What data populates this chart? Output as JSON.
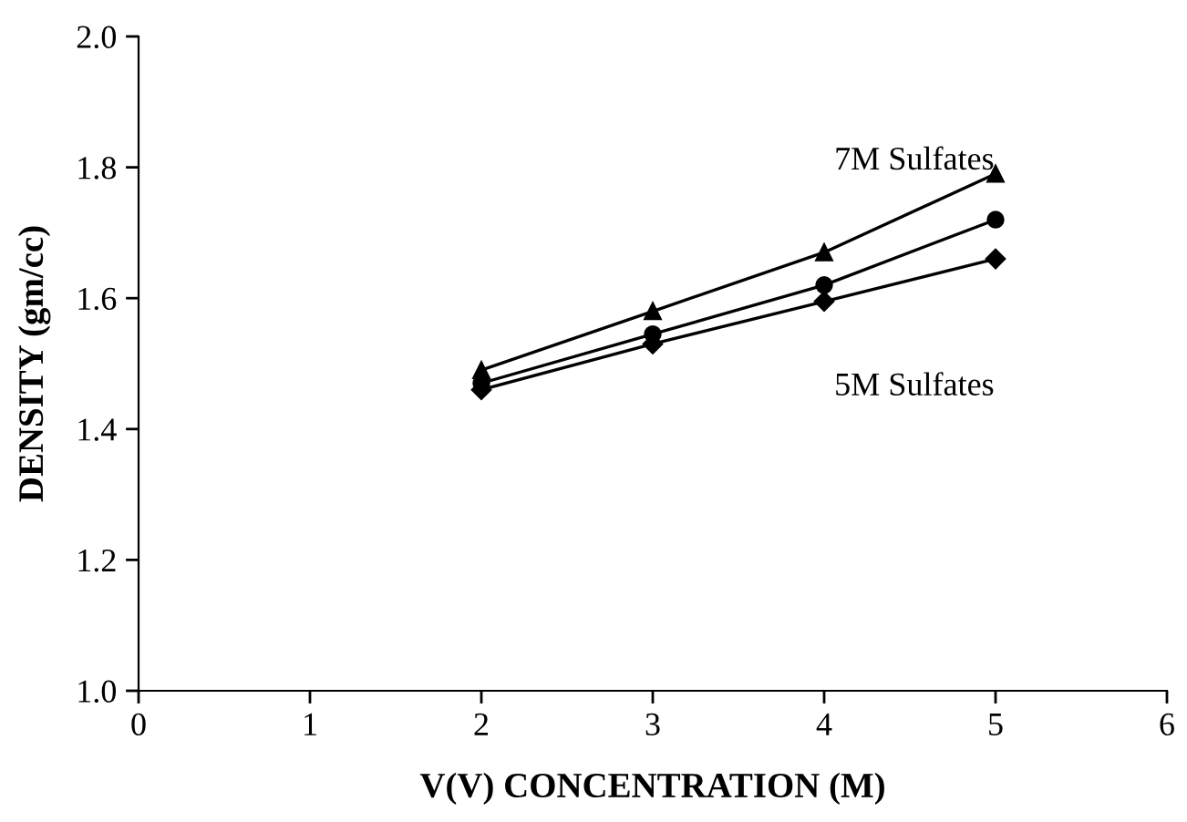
{
  "chart_data": {
    "type": "line",
    "xlabel": "V(V) CONCENTRATION (M)",
    "ylabel": "DENSITY (gm/cc)",
    "x": [
      2,
      3,
      4,
      5
    ],
    "series": [
      {
        "name": "7M Sulfates",
        "color": "#000000",
        "marker": "triangle",
        "values": [
          1.49,
          1.58,
          1.67,
          1.79
        ]
      },
      {
        "color": "#000000",
        "marker": "circle",
        "values": [
          1.47,
          1.545,
          1.62,
          1.72
        ]
      },
      {
        "name": "5M Sulfates",
        "color": "#000000",
        "marker": "diamond",
        "values": [
          1.46,
          1.53,
          1.595,
          1.66
        ]
      }
    ],
    "xlim": [
      0,
      6
    ],
    "xticks": [
      0,
      1,
      2,
      3,
      4,
      5,
      6
    ],
    "ylim": [
      1.0,
      2.0
    ],
    "yticks": [
      {
        "value": 1.0,
        "label": "1.0"
      },
      1.2,
      1.4,
      1.6,
      1.8,
      {
        "value": 2.0,
        "label": "2.0"
      }
    ],
    "grid": false,
    "legend": false,
    "line_style": "solid"
  }
}
